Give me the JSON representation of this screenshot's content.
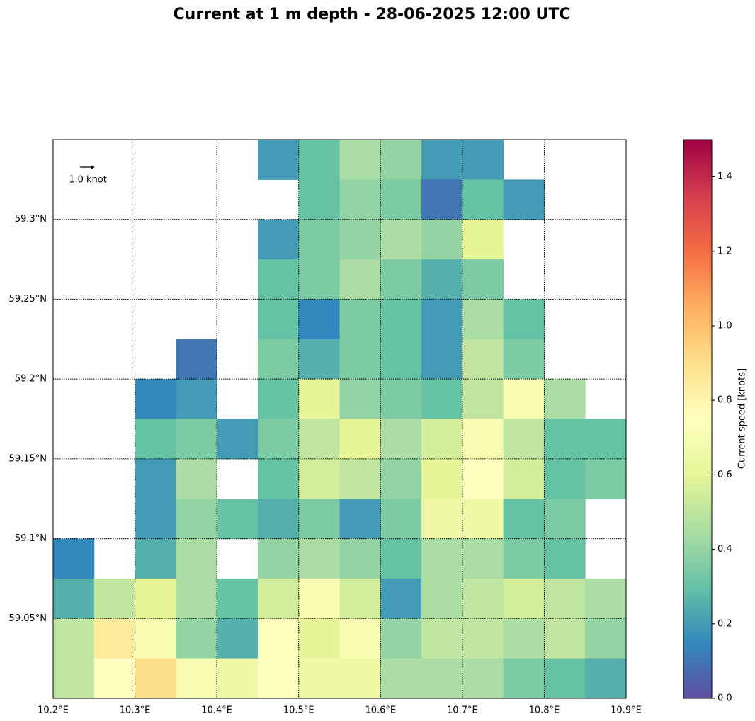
{
  "chart_data": {
    "type": "heatmap",
    "title": "Current at 1 m depth - 28-06-2025 12:00 UTC",
    "colorbar_label": "Current speed [knots]",
    "quiver_key": "1.0 knot",
    "xlim": [
      10.2,
      10.9
    ],
    "ylim": [
      59.0,
      59.35
    ],
    "xticks": [
      {
        "value": 10.2,
        "label": "10.2°E"
      },
      {
        "value": 10.3,
        "label": "10.3°E"
      },
      {
        "value": 10.4,
        "label": "10.4°E"
      },
      {
        "value": 10.5,
        "label": "10.5°E"
      },
      {
        "value": 10.6,
        "label": "10.6°E"
      },
      {
        "value": 10.7,
        "label": "10.7°E"
      },
      {
        "value": 10.8,
        "label": "10.8°E"
      },
      {
        "value": 10.9,
        "label": "10.9°E"
      }
    ],
    "yticks": [
      {
        "value": 59.05,
        "label": "59.05°N"
      },
      {
        "value": 59.1,
        "label": "59.1°N"
      },
      {
        "value": 59.15,
        "label": "59.15°N"
      },
      {
        "value": 59.2,
        "label": "59.2°N"
      },
      {
        "value": 59.25,
        "label": "59.25°N"
      },
      {
        "value": 59.3,
        "label": "59.3°N"
      }
    ],
    "grid": true,
    "clim": [
      0,
      1.5
    ],
    "cticks": [
      {
        "value": 0,
        "label": "0.0"
      },
      {
        "value": 0.2,
        "label": "0.2"
      },
      {
        "value": 0.4,
        "label": "0.4"
      },
      {
        "value": 0.6,
        "label": "0.6"
      },
      {
        "value": 0.8,
        "label": "0.8"
      },
      {
        "value": 1.0,
        "label": "1.0"
      },
      {
        "value": 1.2,
        "label": "1.2"
      },
      {
        "value": 1.4,
        "label": "1.4"
      }
    ],
    "colormap": [
      "#5e4fa2",
      "#3288bd",
      "#66c2a5",
      "#abdda4",
      "#e6f598",
      "#ffffbf",
      "#fee08b",
      "#fdae61",
      "#f46d43",
      "#d53e4f",
      "#9e0142"
    ],
    "lon": [
      10.225,
      10.275,
      10.325,
      10.375,
      10.425,
      10.475,
      10.525,
      10.575,
      10.625,
      10.675,
      10.725,
      10.775,
      10.825,
      10.875
    ],
    "lat": [
      59.3375,
      59.3125,
      59.2875,
      59.2625,
      59.2375,
      59.2125,
      59.1875,
      59.1625,
      59.1375,
      59.1125,
      59.0875,
      59.0625,
      59.0375,
      59.0125
    ],
    "speed": [
      [
        null,
        null,
        null,
        null,
        null,
        0.2,
        0.3,
        0.45,
        0.4,
        0.2,
        0.2,
        null,
        null,
        null
      ],
      [
        null,
        null,
        null,
        null,
        null,
        null,
        0.3,
        0.4,
        0.35,
        0.1,
        0.3,
        0.2,
        null,
        null
      ],
      [
        null,
        null,
        null,
        null,
        null,
        0.2,
        0.35,
        0.4,
        0.45,
        0.4,
        0.6,
        null,
        null,
        null
      ],
      [
        null,
        null,
        null,
        null,
        null,
        0.3,
        0.35,
        0.45,
        0.35,
        0.25,
        0.35,
        null,
        null,
        null
      ],
      [
        null,
        null,
        null,
        null,
        null,
        0.3,
        0.15,
        0.35,
        0.3,
        0.2,
        0.45,
        0.3,
        null,
        null
      ],
      [
        null,
        null,
        null,
        0.1,
        null,
        0.35,
        0.25,
        0.35,
        0.3,
        0.2,
        0.5,
        0.35,
        null,
        null
      ],
      [
        null,
        null,
        0.15,
        0.2,
        null,
        0.3,
        0.6,
        0.4,
        0.35,
        0.3,
        0.5,
        0.7,
        0.45,
        null
      ],
      [
        null,
        null,
        0.3,
        0.35,
        0.2,
        0.35,
        0.5,
        0.6,
        0.45,
        0.55,
        0.7,
        0.5,
        0.3,
        0.3
      ],
      [
        null,
        null,
        0.2,
        0.45,
        null,
        0.3,
        0.55,
        0.5,
        0.4,
        0.6,
        0.75,
        0.55,
        0.3,
        0.35
      ],
      [
        null,
        null,
        0.2,
        0.4,
        0.3,
        0.25,
        0.35,
        0.2,
        0.35,
        0.65,
        0.65,
        0.3,
        0.35,
        null
      ],
      [
        0.15,
        null,
        0.25,
        0.45,
        null,
        0.4,
        0.45,
        0.4,
        0.3,
        0.45,
        0.45,
        0.35,
        0.3,
        null
      ],
      [
        0.25,
        0.5,
        0.6,
        0.45,
        0.3,
        0.55,
        0.7,
        0.55,
        0.2,
        0.45,
        0.5,
        0.55,
        0.5,
        0.45
      ],
      [
        0.5,
        0.85,
        0.7,
        0.4,
        0.25,
        0.75,
        0.6,
        0.7,
        0.4,
        0.5,
        0.5,
        0.45,
        0.5,
        0.4
      ],
      [
        0.5,
        0.75,
        0.9,
        0.7,
        0.65,
        0.75,
        0.65,
        0.65,
        0.45,
        0.45,
        0.45,
        0.35,
        0.3,
        0.25
      ]
    ]
  }
}
